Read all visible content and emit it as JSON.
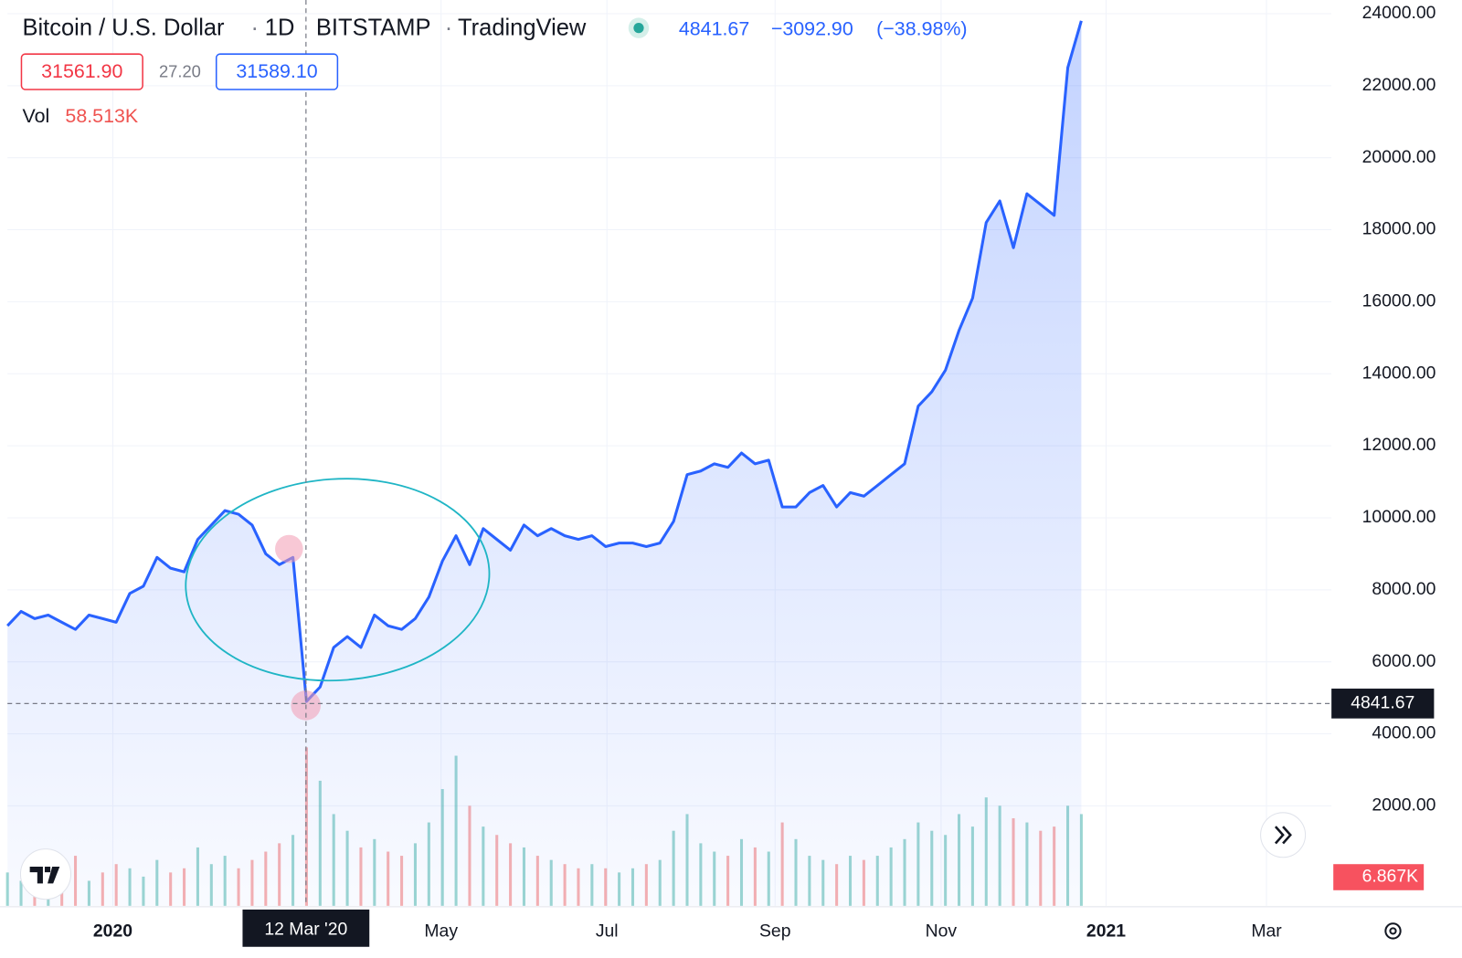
{
  "chart_data": {
    "type": "area",
    "title": "Bitcoin / U.S. Dollar",
    "interval": "1D",
    "exchange": "BITSTAMP",
    "source": "TradingView",
    "change": "−3092.90",
    "change_pct": "(−38.98%)",
    "bid": "31561.90",
    "spread": "27.20",
    "ask": "31589.10",
    "volume_label": "Vol",
    "volume_value": "58.513K",
    "series": [
      {
        "name": "Bitcoin / U.S. Dollar",
        "color": "#2962ff",
        "values": [
          7000,
          7400,
          7200,
          7300,
          7100,
          6900,
          7300,
          7200,
          7100,
          7900,
          8100,
          8900,
          8600,
          8500,
          9400,
          9800,
          10200,
          10100,
          9800,
          9000,
          8700,
          8900,
          4900,
          5300,
          6400,
          6700,
          6400,
          7300,
          7000,
          6900,
          7200,
          7800,
          8800,
          9500,
          8700,
          9700,
          9400,
          9100,
          9800,
          9500,
          9700,
          9500,
          9400,
          9500,
          9200,
          9300,
          9300,
          9200,
          9300,
          9900,
          11200,
          11300,
          11500,
          11400,
          11800,
          11500,
          11600,
          10300,
          10300,
          10700,
          10900,
          10300,
          10700,
          10600,
          10900,
          11200,
          11500,
          13100,
          13500,
          14100,
          15200,
          16100,
          18200,
          18800,
          17500,
          19000,
          18700,
          18400,
          22500,
          23800
        ]
      }
    ],
    "volume": {
      "values": [
        8,
        6,
        9,
        5,
        7,
        12,
        6,
        8,
        10,
        9,
        7,
        11,
        8,
        9,
        14,
        10,
        12,
        9,
        11,
        13,
        15,
        17,
        38,
        30,
        22,
        18,
        14,
        16,
        13,
        12,
        15,
        20,
        28,
        36,
        24,
        19,
        17,
        15,
        14,
        12,
        11,
        10,
        9,
        10,
        9,
        8,
        9,
        10,
        11,
        18,
        22,
        15,
        13,
        12,
        16,
        14,
        13,
        20,
        16,
        12,
        11,
        10,
        12,
        11,
        12,
        14,
        16,
        20,
        18,
        17,
        22,
        19,
        26,
        24,
        21,
        20,
        18,
        19,
        24,
        22
      ],
      "last": 6.867,
      "last_label": "6.867K",
      "color_up": "#26a69a",
      "color_down": "#ef5350"
    },
    "xlim": [
      0,
      97.4
    ],
    "xticks": [
      {
        "value": 7.75,
        "label": "2020"
      },
      {
        "value": 31.9,
        "label": "May"
      },
      {
        "value": 44.1,
        "label": "Jul"
      },
      {
        "value": 56.47,
        "label": "Sep"
      },
      {
        "value": 68.68,
        "label": "Nov"
      },
      {
        "value": 80.82,
        "label": "2021"
      },
      {
        "value": 92.62,
        "label": "Mar"
      }
    ],
    "ylim": [
      -776,
      24380
    ],
    "yticks": [
      {
        "value": 2000,
        "label": "2000.00"
      },
      {
        "value": 4000,
        "label": "4000.00"
      },
      {
        "value": 6000,
        "label": "6000.00"
      },
      {
        "value": 8000,
        "label": "8000.00"
      },
      {
        "value": 10000,
        "label": "10000.00"
      },
      {
        "value": 12000,
        "label": "12000.00"
      },
      {
        "value": 14000,
        "label": "14000.00"
      },
      {
        "value": 16000,
        "label": "16000.00"
      },
      {
        "value": 18000,
        "label": "18000.00"
      },
      {
        "value": 20000,
        "label": "20000.00"
      },
      {
        "value": 22000,
        "label": "22000.00"
      },
      {
        "value": 24000,
        "label": "24000.00"
      }
    ],
    "grid": true,
    "crosshair": {
      "x": 21.96,
      "x_label": "12 Mar '20",
      "price": 4841.67
    }
  }
}
